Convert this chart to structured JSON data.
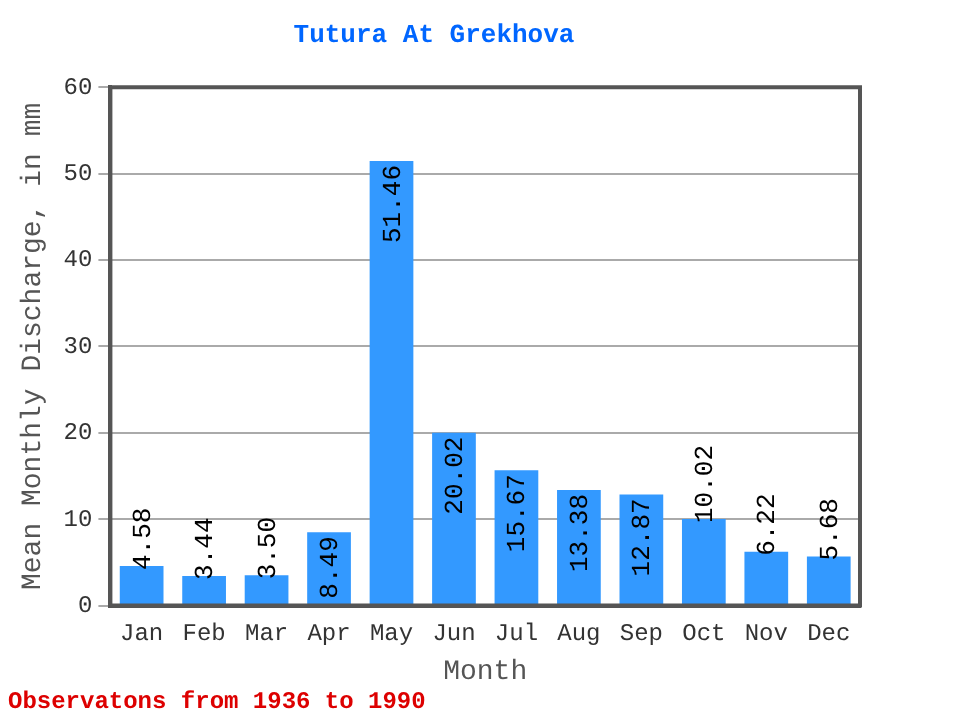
{
  "chart_data": {
    "type": "bar",
    "title": "Tutura At Grekhova",
    "xlabel": "Month",
    "ylabel": "Mean Monthly Discharge, in mm",
    "categories": [
      "Jan",
      "Feb",
      "Mar",
      "Apr",
      "May",
      "Jun",
      "Jul",
      "Aug",
      "Sep",
      "Oct",
      "Nov",
      "Dec"
    ],
    "values": [
      4.58,
      3.44,
      3.5,
      8.49,
      51.46,
      20.02,
      15.67,
      13.38,
      12.87,
      10.02,
      6.22,
      5.68
    ],
    "value_labels": [
      "4.58",
      "3.44",
      "3.50",
      "8.49",
      "51.46",
      "20.02",
      "15.67",
      "13.38",
      "12.87",
      "10.02",
      "6.22",
      "5.68"
    ],
    "color": "#3399ff",
    "ylim": [
      0,
      60
    ],
    "yticks": [
      0,
      10,
      20,
      30,
      40,
      50,
      60
    ],
    "grid": "y",
    "annotations": [
      "Observatons from 1936 to 1990"
    ]
  }
}
